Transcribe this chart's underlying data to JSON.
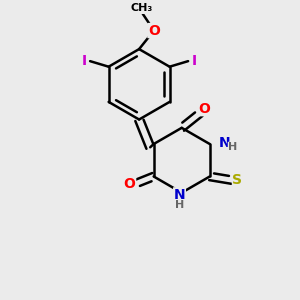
{
  "background_color": "#ebebeb",
  "bond_color": "#000000",
  "bond_width": 1.8,
  "atom_colors": {
    "O": "#ff0000",
    "N": "#0000cc",
    "S": "#aaaa00",
    "I": "#cc00cc",
    "H": "#666666",
    "C": "#000000"
  },
  "font_size": 10,
  "fig_size": [
    3.0,
    3.0
  ],
  "dpi": 100
}
